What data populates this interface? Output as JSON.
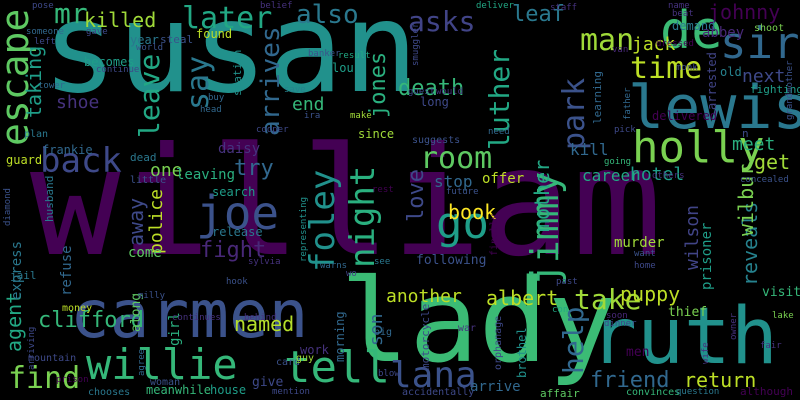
{
  "words": [
    {
      "text": "susan",
      "color": "#21918c"
    },
    {
      "text": "william",
      "color": "#440154"
    },
    {
      "text": "lady",
      "color": "#3bbb75"
    },
    {
      "text": "carmen",
      "color": "#3b528b"
    },
    {
      "text": "ruth",
      "color": "#21918c"
    },
    {
      "text": "lewis",
      "color": "#2a788e"
    },
    {
      "text": "de",
      "color": "#3bbb75"
    },
    {
      "text": "sir",
      "color": "#31688e"
    },
    {
      "text": "escape",
      "color": "#5ec962"
    },
    {
      "text": "holly",
      "color": "#7ad151"
    },
    {
      "text": "time",
      "color": "#bddf26"
    },
    {
      "text": "joe",
      "color": "#3b528b"
    },
    {
      "text": "tell",
      "color": "#35b779"
    },
    {
      "text": "willie",
      "color": "#35b779"
    },
    {
      "text": "lana",
      "color": "#3b528b"
    },
    {
      "text": "find",
      "color": "#7ad151"
    },
    {
      "text": "back",
      "color": "#3e4989"
    },
    {
      "text": "room",
      "color": "#5ec962"
    },
    {
      "text": "jimmy",
      "color": "#35b779"
    },
    {
      "text": "foley",
      "color": "#21918c"
    },
    {
      "text": "night",
      "color": "#2ab07f"
    },
    {
      "text": "park",
      "color": "#3b528b"
    },
    {
      "text": "luther",
      "color": "#22a884"
    },
    {
      "text": "go",
      "color": "#1f9e89"
    },
    {
      "text": "later",
      "color": "#22a884"
    },
    {
      "text": "also",
      "color": "#2a788e"
    },
    {
      "text": "asks",
      "color": "#414487"
    },
    {
      "text": "leaf",
      "color": "#2a788e"
    },
    {
      "text": "man",
      "color": "#a0da39"
    },
    {
      "text": "johnny",
      "color": "#440154"
    },
    {
      "text": "killed",
      "color": "#a0da39"
    },
    {
      "text": "mr",
      "color": "#35b779"
    },
    {
      "text": "say",
      "color": "#2a788e"
    },
    {
      "text": "arrives",
      "color": "#31688e"
    },
    {
      "text": "leave",
      "color": "#22a884"
    },
    {
      "text": "jones",
      "color": "#2ab07f"
    },
    {
      "text": "death",
      "color": "#35b779"
    },
    {
      "text": "end",
      "color": "#35b779"
    },
    {
      "text": "taking",
      "color": "#1f9e89"
    },
    {
      "text": "shoe",
      "color": "#46327e"
    },
    {
      "text": "try",
      "color": "#31688e"
    },
    {
      "text": "fight",
      "color": "#482878"
    },
    {
      "text": "away",
      "color": "#3e4989"
    },
    {
      "text": "one",
      "color": "#7ad151"
    },
    {
      "text": "leaving",
      "color": "#2ab07f"
    },
    {
      "text": "police",
      "color": "#bddf26"
    },
    {
      "text": "love",
      "color": "#3e4989"
    },
    {
      "text": "book",
      "color": "#fde725"
    },
    {
      "text": "mother",
      "color": "#22a884"
    },
    {
      "text": "help",
      "color": "#31688e"
    },
    {
      "text": "take",
      "color": "#a0da39"
    },
    {
      "text": "puppy",
      "color": "#bddf26"
    },
    {
      "text": "another",
      "color": "#bddf26"
    },
    {
      "text": "albert",
      "color": "#bddf26"
    },
    {
      "text": "agent",
      "color": "#22a884"
    },
    {
      "text": "clifford",
      "color": "#35b779"
    },
    {
      "text": "named",
      "color": "#b5de2b"
    },
    {
      "text": "son",
      "color": "#31688e"
    },
    {
      "text": "friend",
      "color": "#31688e"
    },
    {
      "text": "return",
      "color": "#bddf26"
    },
    {
      "text": "reveals",
      "color": "#26828e"
    },
    {
      "text": "wilson",
      "color": "#414487"
    },
    {
      "text": "meet",
      "color": "#2ab07f"
    },
    {
      "text": "get",
      "color": "#a0da39"
    },
    {
      "text": "hotel",
      "color": "#1f9e89"
    },
    {
      "text": "next",
      "color": "#3e4989"
    },
    {
      "text": "jack",
      "color": "#bddf26"
    },
    {
      "text": "stop",
      "color": "#31688e"
    },
    {
      "text": "offer",
      "color": "#bddf26"
    },
    {
      "text": "murder",
      "color": "#a0da39"
    },
    {
      "text": "wilbur",
      "color": "#7ad151"
    },
    {
      "text": "prisoner",
      "color": "#1f9e89"
    },
    {
      "text": "career",
      "color": "#22a884"
    },
    {
      "text": "kill",
      "color": "#31688e"
    },
    {
      "text": "following",
      "color": "#3b528b"
    },
    {
      "text": "search",
      "color": "#1f9e89"
    },
    {
      "text": "daisy",
      "color": "#46327e"
    },
    {
      "text": "release",
      "color": "#2a788e"
    },
    {
      "text": "come",
      "color": "#5ec962"
    },
    {
      "text": "express",
      "color": "#2a788e"
    },
    {
      "text": "refuse",
      "color": "#31688e"
    },
    {
      "text": "girl",
      "color": "#2ab07f"
    },
    {
      "text": "along",
      "color": "#5ec962"
    },
    {
      "text": "work",
      "color": "#46327e"
    },
    {
      "text": "morning",
      "color": "#31688e"
    },
    {
      "text": "brothel",
      "color": "#21918c"
    },
    {
      "text": "arrive",
      "color": "#31688e"
    },
    {
      "text": "thief",
      "color": "#7ad151"
    },
    {
      "text": "visit",
      "color": "#35b779"
    },
    {
      "text": "men",
      "color": "#440154"
    },
    {
      "text": "give",
      "color": "#3e4989"
    },
    {
      "text": "meanwhile",
      "color": "#35b779"
    },
    {
      "text": "house",
      "color": "#1f9e89"
    },
    {
      "text": "chooses",
      "color": "#2a788e"
    },
    {
      "text": "money",
      "color": "#bddf26"
    },
    {
      "text": "becomes",
      "color": "#1f9e89"
    },
    {
      "text": "year",
      "color": "#2a788e"
    },
    {
      "text": "steal",
      "color": "#3b528b"
    },
    {
      "text": "found",
      "color": "#bddf26"
    },
    {
      "text": "station",
      "color": "#21918c"
    },
    {
      "text": "lou",
      "color": "#1f9e89"
    },
    {
      "text": "since",
      "color": "#a0da39"
    },
    {
      "text": "suggests",
      "color": "#3b528b"
    },
    {
      "text": "long",
      "color": "#3e4989"
    },
    {
      "text": "learning",
      "color": "#31688e"
    },
    {
      "text": "delivered",
      "color": "#440154"
    },
    {
      "text": "demand",
      "color": "#2a788e"
    },
    {
      "text": "abbey",
      "color": "#482878"
    },
    {
      "text": "arrested",
      "color": "#414487"
    },
    {
      "text": "old",
      "color": "#26828e"
    },
    {
      "text": "fighting",
      "color": "#1f9e89"
    },
    {
      "text": "shoot",
      "color": "#7ad151"
    },
    {
      "text": "frankie",
      "color": "#31688e"
    },
    {
      "text": "guard",
      "color": "#bddf26"
    },
    {
      "text": "dead",
      "color": "#2a788e"
    },
    {
      "text": "little",
      "color": "#3b528b"
    },
    {
      "text": "plan",
      "color": "#2a788e"
    },
    {
      "text": "husband",
      "color": "#2a788e"
    },
    {
      "text": "jail",
      "color": "#2a788e"
    },
    {
      "text": "mountain",
      "color": "#3e4989"
    },
    {
      "text": "woman",
      "color": "#3b528b"
    },
    {
      "text": "motorcycle",
      "color": "#3e4989"
    },
    {
      "text": "accidentally",
      "color": "#3e4989"
    },
    {
      "text": "affair",
      "color": "#5ec962"
    },
    {
      "text": "convinces",
      "color": "#35b779"
    },
    {
      "text": "question",
      "color": "#2a788e"
    },
    {
      "text": "although",
      "color": "#440154"
    },
    {
      "text": "mention",
      "color": "#3e4989"
    },
    {
      "text": "card",
      "color": "#3b528b"
    },
    {
      "text": "guy",
      "color": "#a0da39"
    },
    {
      "text": "big",
      "color": "#31688e"
    },
    {
      "text": "war",
      "color": "#46327e"
    },
    {
      "text": "con",
      "color": "#22a884"
    },
    {
      "text": "continues",
      "color": "#46327e"
    },
    {
      "text": "behind",
      "color": "#46327e"
    },
    {
      "text": "hook",
      "color": "#3b528b"
    },
    {
      "text": "sylvia",
      "color": "#46327e"
    },
    {
      "text": "wo",
      "color": "#414487"
    },
    {
      "text": "warns",
      "color": "#31688e"
    },
    {
      "text": "see",
      "color": "#2a788e"
    },
    {
      "text": "past",
      "color": "#3e4989"
    },
    {
      "text": "representing",
      "color": "#21918c"
    },
    {
      "text": "finally",
      "color": "#440154"
    },
    {
      "text": "orphanage",
      "color": "#3e4989"
    },
    {
      "text": "future",
      "color": "#3b528b"
    },
    {
      "text": "need",
      "color": "#31688e"
    },
    {
      "text": "cooper",
      "color": "#3e4989"
    },
    {
      "text": "ira",
      "color": "#3b528b"
    },
    {
      "text": "head",
      "color": "#31688e"
    },
    {
      "text": "buy",
      "color": "#31688e"
    },
    {
      "text": "save",
      "color": "#26828e"
    },
    {
      "text": "make",
      "color": "#a0da39"
    },
    {
      "text": "belief",
      "color": "#46327e"
    },
    {
      "text": "banker",
      "color": "#3b528b"
    },
    {
      "text": "result",
      "color": "#22a884"
    },
    {
      "text": "deliver",
      "color": "#22a884"
    },
    {
      "text": "smuggler",
      "color": "#3e4989"
    },
    {
      "text": "staff",
      "color": "#46327e"
    },
    {
      "text": "guest",
      "color": "#3e4989"
    },
    {
      "text": "would",
      "color": "#46327e"
    },
    {
      "text": "pose",
      "color": "#3e4989"
    },
    {
      "text": "someone",
      "color": "#31688e"
    },
    {
      "text": "left",
      "color": "#3e4989"
    },
    {
      "text": "world",
      "color": "#3b528b"
    },
    {
      "text": "continue",
      "color": "#3e4989"
    },
    {
      "text": "tower",
      "color": "#31688e"
    },
    {
      "text": "gave",
      "color": "#3e4989"
    },
    {
      "text": "diamond",
      "color": "#3b528b"
    },
    {
      "text": "arriving",
      "color": "#3e4989"
    },
    {
      "text": "prison",
      "color": "#440154"
    },
    {
      "text": "milly",
      "color": "#3b528b"
    },
    {
      "text": "agree",
      "color": "#31688e"
    },
    {
      "text": "blow",
      "color": "#3e4989"
    },
    {
      "text": "rest",
      "color": "#440154"
    },
    {
      "text": "pick",
      "color": "#3e4989"
    },
    {
      "text": "going",
      "color": "#35b779"
    },
    {
      "text": "others",
      "color": "#46327e"
    },
    {
      "text": "want",
      "color": "#3b528b"
    },
    {
      "text": "home",
      "color": "#3e4989"
    },
    {
      "text": "dinner",
      "color": "#3e4989"
    },
    {
      "text": "soon",
      "color": "#482878"
    },
    {
      "text": "fair",
      "color": "#46327e"
    },
    {
      "text": "wife",
      "color": "#46327e"
    },
    {
      "text": "lake",
      "color": "#7ad151"
    },
    {
      "text": "owner",
      "color": "#46327e"
    },
    {
      "text": "concealed",
      "color": "#3b528b"
    },
    {
      "text": "father",
      "color": "#31688e"
    },
    {
      "text": "van",
      "color": "#482878"
    },
    {
      "text": "monk",
      "color": "#3e4989"
    },
    {
      "text": "dressed",
      "color": "#440154"
    },
    {
      "text": "name",
      "color": "#46327e"
    },
    {
      "text": "beat",
      "color": "#46327e"
    },
    {
      "text": "grandmother",
      "color": "#3b528b"
    },
    {
      "text": "n",
      "color": "#3e4989"
    }
  ]
}
